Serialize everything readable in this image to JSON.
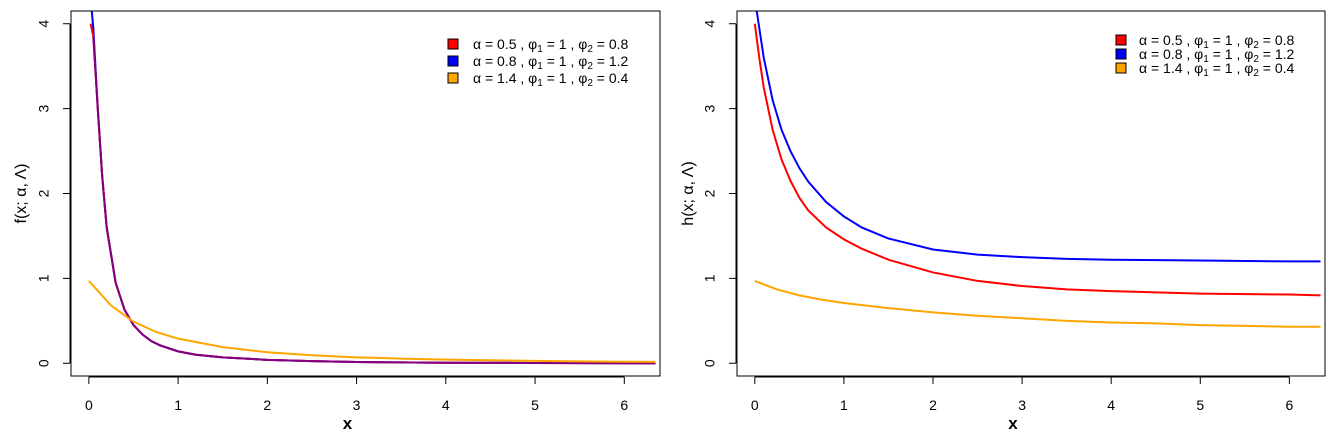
{
  "chart_data": [
    {
      "type": "line",
      "ylabel": "f(x; α, Λ)",
      "xlabel": "x",
      "xlim": [
        -0.2,
        6.4
      ],
      "ylim": [
        -0.15,
        4.15
      ],
      "xticks": [
        "0",
        "1",
        "2",
        "3",
        "4",
        "5",
        "6"
      ],
      "yticks": [
        "0",
        "1",
        "2",
        "3",
        "4"
      ],
      "legend_position": "top-right",
      "legend_entries": [
        {
          "alpha": "α = 0.5",
          "phi1": "1",
          "phi2": "0.8",
          "color": "#ff0000"
        },
        {
          "alpha": "α = 0.8",
          "phi1": "1",
          "phi2": "1.2",
          "color": "#0000ff"
        },
        {
          "alpha": "α = 1.4",
          "phi1": "1",
          "phi2": "0.4",
          "color": "#ffa500"
        }
      ],
      "series": [
        {
          "color": "#0000ff",
          "x": [
            0.02,
            0.05,
            0.1,
            0.15,
            0.2,
            0.3,
            0.4,
            0.5,
            0.6,
            0.7,
            0.8,
            1.0,
            1.2,
            1.5,
            2.0,
            2.5,
            3.0,
            4.0,
            5.0,
            6.35
          ],
          "y": [
            4.3,
            3.95,
            3.0,
            2.2,
            1.6,
            0.95,
            0.63,
            0.45,
            0.34,
            0.26,
            0.21,
            0.14,
            0.1,
            0.07,
            0.04,
            0.025,
            0.015,
            0.006,
            0.003,
            0.0
          ]
        },
        {
          "color": "#ff0000",
          "x": [
            0.02,
            0.05,
            0.1,
            0.15,
            0.2,
            0.3,
            0.4,
            0.5,
            0.6,
            0.7,
            0.8,
            1.0,
            1.2,
            1.5,
            2.0,
            2.5,
            3.0,
            4.0,
            5.0,
            6.35
          ],
          "y": [
            4.0,
            3.85,
            3.0,
            2.2,
            1.6,
            0.95,
            0.63,
            0.45,
            0.34,
            0.26,
            0.21,
            0.14,
            0.1,
            0.07,
            0.04,
            0.025,
            0.015,
            0.006,
            0.003,
            0.0
          ]
        },
        {
          "color": "#800080",
          "x": [
            0.05,
            0.1,
            0.15,
            0.2,
            0.3,
            0.4,
            0.5,
            0.6,
            0.7,
            0.8,
            1.0,
            1.2,
            1.5,
            2.0,
            2.5,
            3.0,
            4.0,
            5.0,
            6.35
          ],
          "y": [
            3.85,
            3.0,
            2.2,
            1.6,
            0.95,
            0.63,
            0.45,
            0.34,
            0.26,
            0.21,
            0.14,
            0.1,
            0.07,
            0.04,
            0.025,
            0.015,
            0.006,
            0.003,
            0.0
          ]
        },
        {
          "color": "#ffa500",
          "x": [
            0.0,
            0.25,
            0.5,
            0.75,
            1.0,
            1.5,
            2.0,
            2.5,
            3.0,
            3.5,
            4.0,
            4.5,
            5.0,
            5.5,
            6.0,
            6.35
          ],
          "y": [
            0.97,
            0.68,
            0.49,
            0.37,
            0.29,
            0.19,
            0.13,
            0.095,
            0.07,
            0.055,
            0.043,
            0.035,
            0.028,
            0.022,
            0.018,
            0.016
          ]
        }
      ]
    },
    {
      "type": "line",
      "ylabel": "h(x; α, Λ)",
      "xlabel": "x",
      "xlim": [
        -0.2,
        6.4
      ],
      "ylim": [
        -0.15,
        4.15
      ],
      "xticks": [
        "0",
        "1",
        "2",
        "3",
        "4",
        "5",
        "6"
      ],
      "yticks": [
        "0",
        "1",
        "2",
        "3",
        "4"
      ],
      "legend_position": "top-right",
      "legend_entries": [
        {
          "alpha": "α = 0.5",
          "phi1": "1",
          "phi2": "0.8",
          "color": "#ff0000"
        },
        {
          "alpha": "α = 0.8",
          "phi1": "1",
          "phi2": "1.2",
          "color": "#0000ff"
        },
        {
          "alpha": "α = 1.4",
          "phi1": "1",
          "phi2": "0.4",
          "color": "#ffa500"
        }
      ],
      "series": [
        {
          "color": "#0000ff",
          "x": [
            0.0,
            0.05,
            0.1,
            0.2,
            0.3,
            0.4,
            0.5,
            0.6,
            0.8,
            1.0,
            1.2,
            1.5,
            2.0,
            2.5,
            3.0,
            3.5,
            4.0,
            5.0,
            6.0,
            6.35
          ],
          "y": [
            4.3,
            3.95,
            3.6,
            3.1,
            2.75,
            2.5,
            2.3,
            2.14,
            1.9,
            1.73,
            1.6,
            1.47,
            1.34,
            1.28,
            1.25,
            1.23,
            1.22,
            1.21,
            1.2,
            1.2
          ]
        },
        {
          "color": "#ff0000",
          "x": [
            0.0,
            0.05,
            0.1,
            0.2,
            0.3,
            0.4,
            0.5,
            0.6,
            0.8,
            1.0,
            1.2,
            1.5,
            2.0,
            2.5,
            3.0,
            3.5,
            4.0,
            5.0,
            6.0,
            6.35
          ],
          "y": [
            4.0,
            3.6,
            3.25,
            2.75,
            2.4,
            2.15,
            1.95,
            1.8,
            1.6,
            1.46,
            1.35,
            1.22,
            1.07,
            0.97,
            0.91,
            0.87,
            0.85,
            0.82,
            0.81,
            0.8
          ]
        },
        {
          "color": "#ffa500",
          "x": [
            0.0,
            0.25,
            0.5,
            0.75,
            1.0,
            1.5,
            2.0,
            2.5,
            3.0,
            3.5,
            4.0,
            4.5,
            5.0,
            5.5,
            6.0,
            6.35
          ],
          "y": [
            0.97,
            0.87,
            0.8,
            0.75,
            0.71,
            0.65,
            0.6,
            0.56,
            0.53,
            0.5,
            0.48,
            0.47,
            0.45,
            0.44,
            0.43,
            0.43
          ]
        }
      ]
    }
  ]
}
